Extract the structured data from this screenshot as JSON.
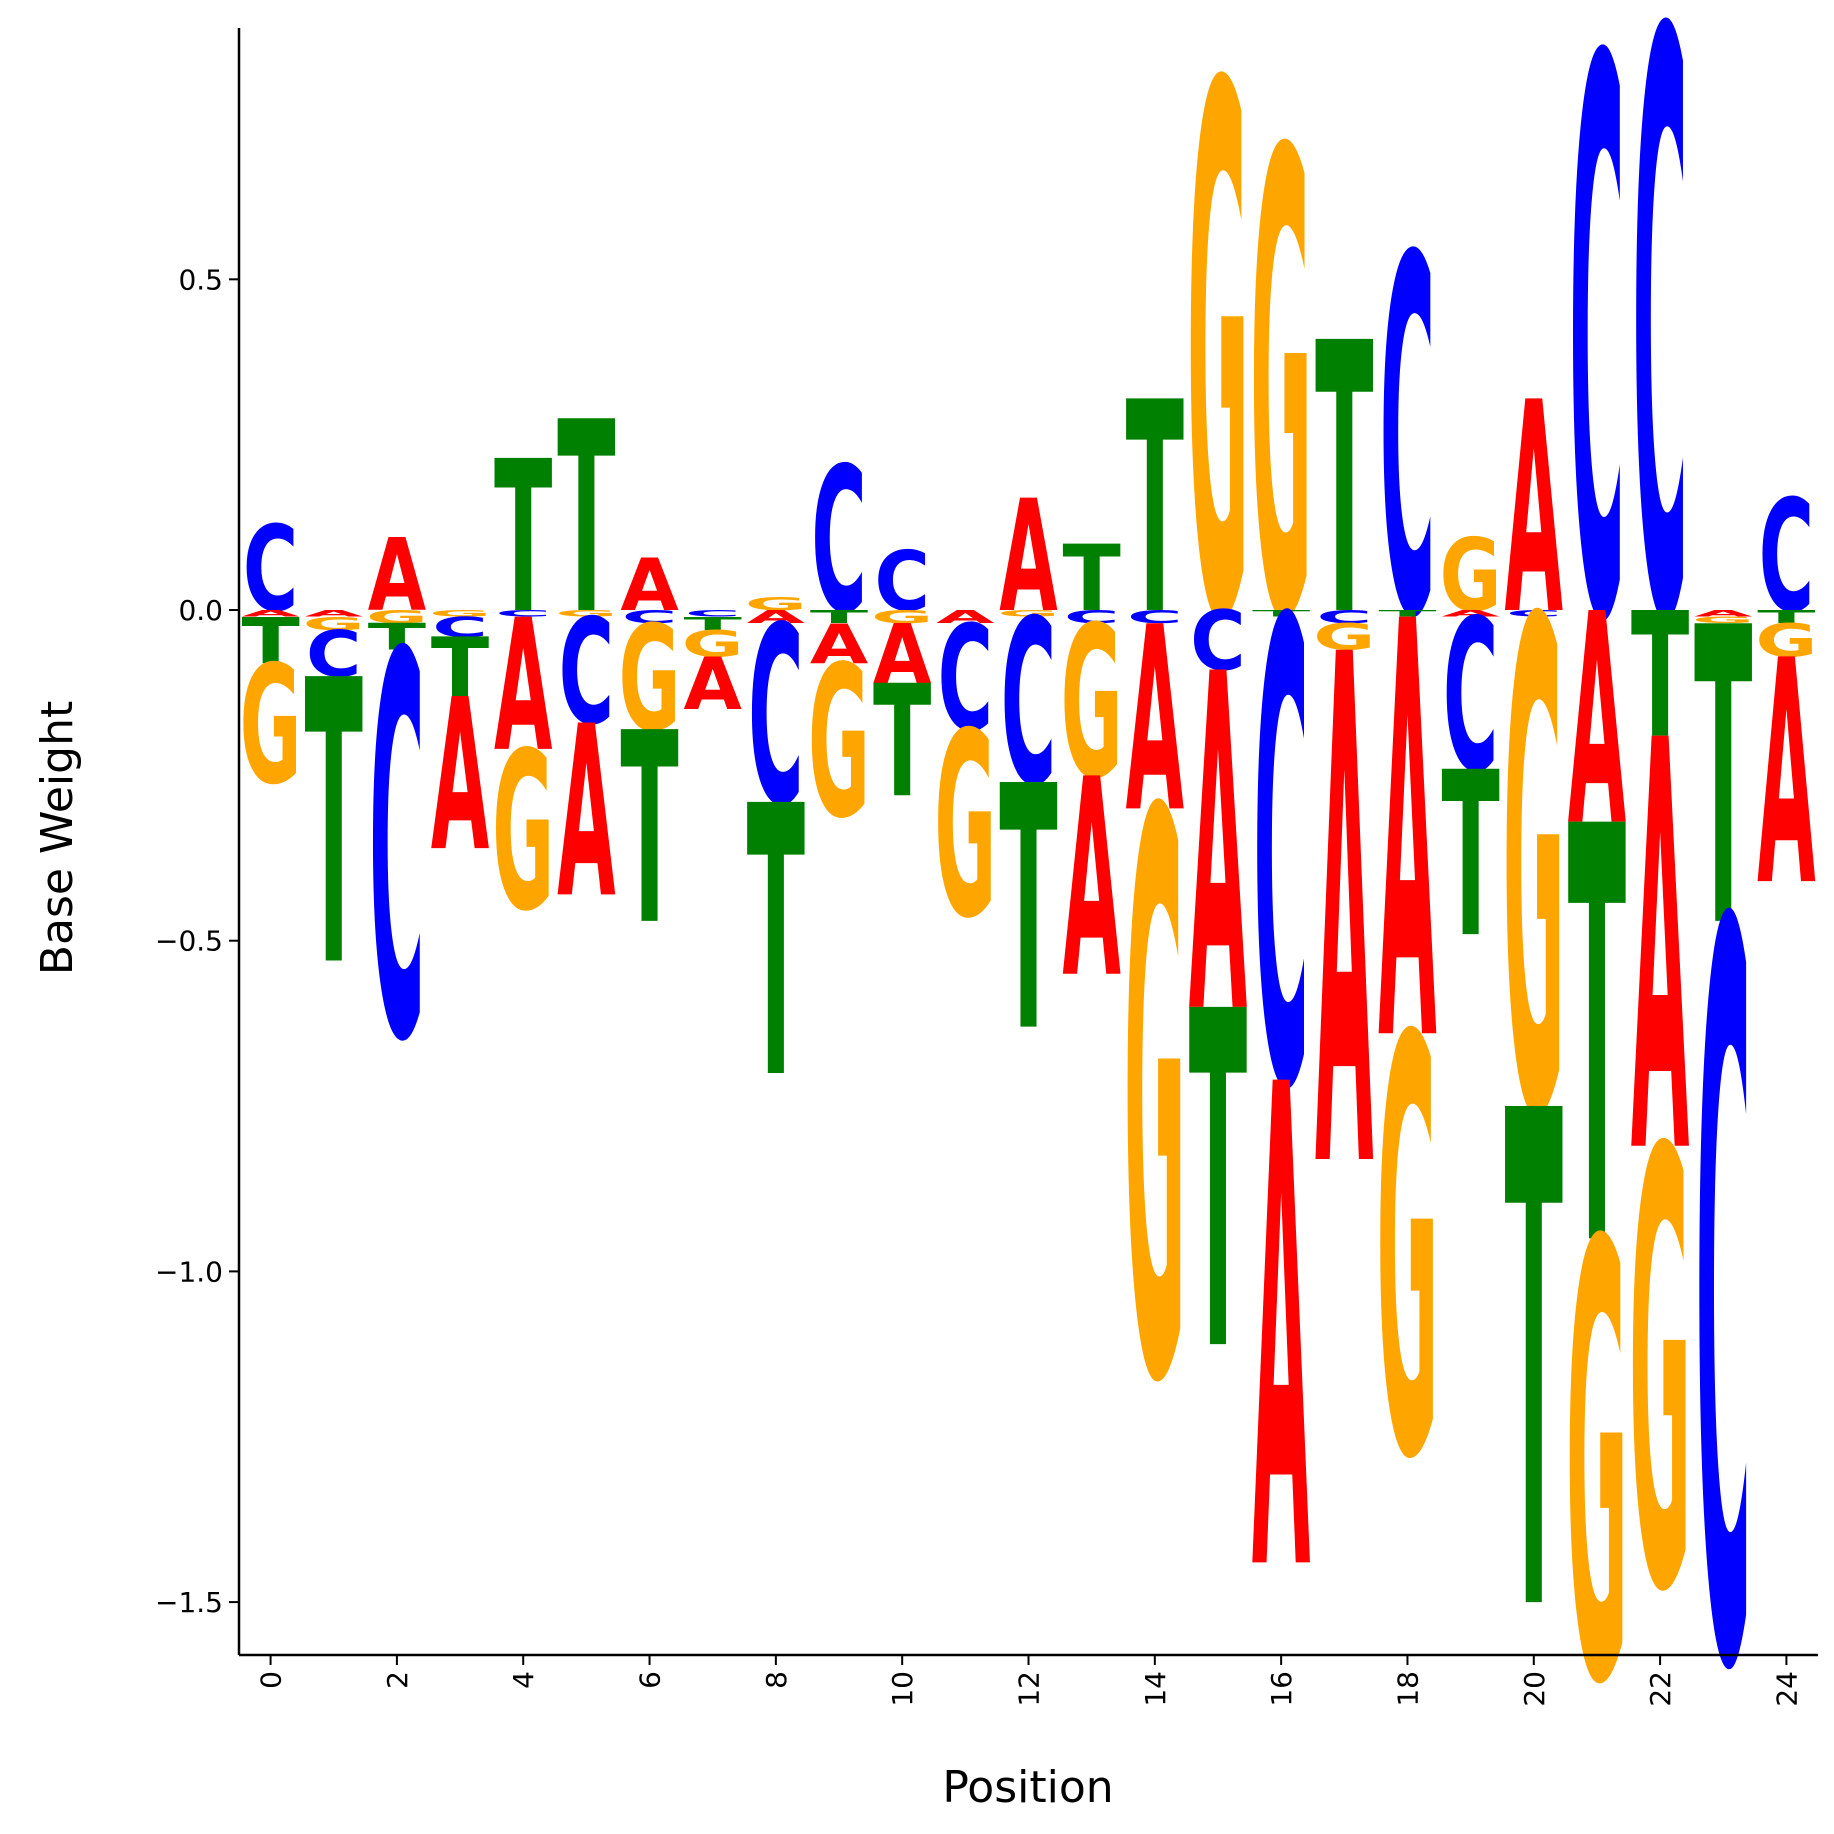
{
  "chart_data": {
    "type": "sequence-logo",
    "xlabel": "Position",
    "ylabel": "Base Weight",
    "xlim": [
      -0.5,
      24.5
    ],
    "ylim": [
      -1.58,
      0.88
    ],
    "x_ticks": [
      0,
      2,
      4,
      6,
      8,
      10,
      12,
      14,
      16,
      18,
      20,
      22,
      24
    ],
    "y_ticks": [
      0.5,
      0.0,
      -0.5,
      -1.0,
      -1.5
    ],
    "y_tick_labels": [
      "0.5",
      "0.0",
      "−0.5",
      "−1.0",
      "−1.5"
    ],
    "grid": false,
    "colors": {
      "A": "#ff0000",
      "C": "#0000ff",
      "G": "#ffa500",
      "T": "#008000"
    },
    "positions": [
      {
        "pos": 0,
        "weights": {
          "A": -0.01,
          "C": 0.13,
          "G": -0.18,
          "T": -0.07
        }
      },
      {
        "pos": 1,
        "weights": {
          "A": -0.01,
          "C": -0.07,
          "G": -0.02,
          "T": -0.43
        }
      },
      {
        "pos": 2,
        "weights": {
          "A": 0.11,
          "C": -0.58,
          "G": -0.02,
          "T": -0.04
        }
      },
      {
        "pos": 3,
        "weights": {
          "A": -0.23,
          "C": -0.03,
          "G": -0.01,
          "T": -0.09
        }
      },
      {
        "pos": 4,
        "weights": {
          "A": -0.2,
          "C": -0.01,
          "G": -0.24,
          "T": 0.23
        }
      },
      {
        "pos": 5,
        "weights": {
          "A": -0.26,
          "C": -0.16,
          "G": -0.01,
          "T": 0.29
        }
      },
      {
        "pos": 6,
        "weights": {
          "A": 0.08,
          "C": -0.02,
          "G": -0.16,
          "T": -0.29
        }
      },
      {
        "pos": 7,
        "weights": {
          "A": -0.08,
          "C": -0.01,
          "G": -0.04,
          "T": -0.02
        }
      },
      {
        "pos": 8,
        "weights": {
          "A": -0.02,
          "C": -0.27,
          "G": 0.02,
          "T": -0.41
        }
      },
      {
        "pos": 9,
        "weights": {
          "A": -0.06,
          "C": 0.22,
          "G": -0.23,
          "T": -0.02
        }
      },
      {
        "pos": 10,
        "weights": {
          "A": -0.09,
          "C": 0.09,
          "G": -0.02,
          "T": -0.17
        }
      },
      {
        "pos": 11,
        "weights": {
          "A": -0.02,
          "C": -0.16,
          "G": -0.28,
          "T": 0.0
        }
      },
      {
        "pos": 12,
        "weights": {
          "A": 0.17,
          "C": -0.25,
          "G": -0.01,
          "T": -0.37
        }
      },
      {
        "pos": 13,
        "weights": {
          "A": -0.3,
          "C": -0.02,
          "G": -0.23,
          "T": 0.1
        }
      },
      {
        "pos": 14,
        "weights": {
          "A": -0.28,
          "C": -0.02,
          "G": -0.85,
          "T": 0.32
        }
      },
      {
        "pos": 15,
        "weights": {
          "A": -0.51,
          "C": -0.09,
          "G": 0.8,
          "T": -0.51
        }
      },
      {
        "pos": 16,
        "weights": {
          "A": -0.73,
          "C": -0.7,
          "G": 0.7,
          "T": -0.01
        }
      },
      {
        "pos": 17,
        "weights": {
          "A": -0.77,
          "C": -0.02,
          "G": -0.04,
          "T": 0.41
        }
      },
      {
        "pos": 18,
        "weights": {
          "A": -0.63,
          "C": 0.54,
          "G": -0.63,
          "T": -0.01
        }
      },
      {
        "pos": 19,
        "weights": {
          "A": -0.01,
          "C": -0.23,
          "G": 0.11,
          "T": -0.25
        }
      },
      {
        "pos": 20,
        "weights": {
          "A": 0.32,
          "C": -0.01,
          "G": -0.74,
          "T": -0.75
        }
      },
      {
        "pos": 21,
        "weights": {
          "A": -0.32,
          "C": 0.84,
          "G": -0.66,
          "T": -0.63
        }
      },
      {
        "pos": 22,
        "weights": {
          "A": -0.62,
          "C": 0.88,
          "G": -0.66,
          "T": -0.19
        }
      },
      {
        "pos": 23,
        "weights": {
          "A": -0.01,
          "C": -1.11,
          "G": -0.01,
          "T": -0.45
        }
      },
      {
        "pos": 24,
        "weights": {
          "A": -0.34,
          "C": 0.17,
          "G": -0.05,
          "T": -0.02
        }
      }
    ]
  }
}
